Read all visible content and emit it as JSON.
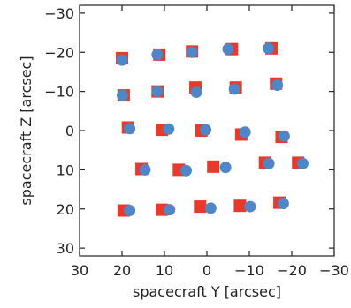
{
  "chart_data": {
    "type": "scatter",
    "xlabel": "spacecraft Y [arcsec]",
    "ylabel": "spacecraft Z [arcsec]",
    "xlim": [
      30,
      -30
    ],
    "ylim": [
      32,
      -32
    ],
    "x_ticks": [
      30,
      20,
      10,
      0,
      -10,
      -20,
      -30
    ],
    "y_ticks": [
      -30,
      -20,
      -10,
      0,
      10,
      20,
      30
    ],
    "x_tick_labels": [
      "30",
      "20",
      "10",
      "0",
      "−10",
      "−20",
      "−30"
    ],
    "y_tick_labels": [
      "−30",
      "−20",
      "−10",
      "0",
      "10",
      "20",
      "30"
    ],
    "grid": false,
    "colors": {
      "squares": "#e8392b",
      "circles": "#4f86c6"
    },
    "series": [
      {
        "marker": "square",
        "color": "#e8392b",
        "points": [
          [
            20,
            -18.5
          ],
          [
            11.2,
            -19.4
          ],
          [
            3.5,
            -20.2
          ],
          [
            -5.9,
            -20.8
          ],
          [
            -15.2,
            -21.0
          ],
          [
            19.6,
            -9.0
          ],
          [
            11.6,
            -10.0
          ],
          [
            2.7,
            -11.0
          ],
          [
            -6.8,
            -11.0
          ],
          [
            -16.3,
            -12.0
          ],
          [
            18.6,
            -0.8
          ],
          [
            10.6,
            -0.2
          ],
          [
            1.3,
            0.0
          ],
          [
            -8.1,
            1.0
          ],
          [
            -17.6,
            1.6
          ],
          [
            15.4,
            9.8
          ],
          [
            6.6,
            10.0
          ],
          [
            -1.5,
            9.2
          ],
          [
            -13.7,
            8.2
          ],
          [
            -21.5,
            8.2
          ],
          [
            19.6,
            20.4
          ],
          [
            10.6,
            20.2
          ],
          [
            1.6,
            19.4
          ],
          [
            -7.8,
            19.2
          ],
          [
            -17.1,
            18.4
          ]
        ]
      },
      {
        "marker": "circle",
        "color": "#4f86c6",
        "points": [
          [
            20.0,
            -18.0
          ],
          [
            11.7,
            -19.4
          ],
          [
            3.5,
            -20.0
          ],
          [
            -5.0,
            -20.8
          ],
          [
            -14.5,
            -21.0
          ],
          [
            19.9,
            -9.0
          ],
          [
            11.7,
            -10.0
          ],
          [
            2.5,
            -9.8
          ],
          [
            -6.5,
            -10.6
          ],
          [
            -16.6,
            -11.6
          ],
          [
            18.2,
            -0.5
          ],
          [
            9.0,
            -0.4
          ],
          [
            0.3,
            -0.2
          ],
          [
            -9.0,
            0.4
          ],
          [
            -18.2,
            1.4
          ],
          [
            14.6,
            10.0
          ],
          [
            4.9,
            10.2
          ],
          [
            -4.4,
            9.4
          ],
          [
            -14.6,
            8.4
          ],
          [
            -22.6,
            8.4
          ],
          [
            18.2,
            20.4
          ],
          [
            8.8,
            20.2
          ],
          [
            -0.9,
            19.8
          ],
          [
            -10.2,
            19.4
          ],
          [
            -18.0,
            18.6
          ]
        ]
      }
    ]
  }
}
